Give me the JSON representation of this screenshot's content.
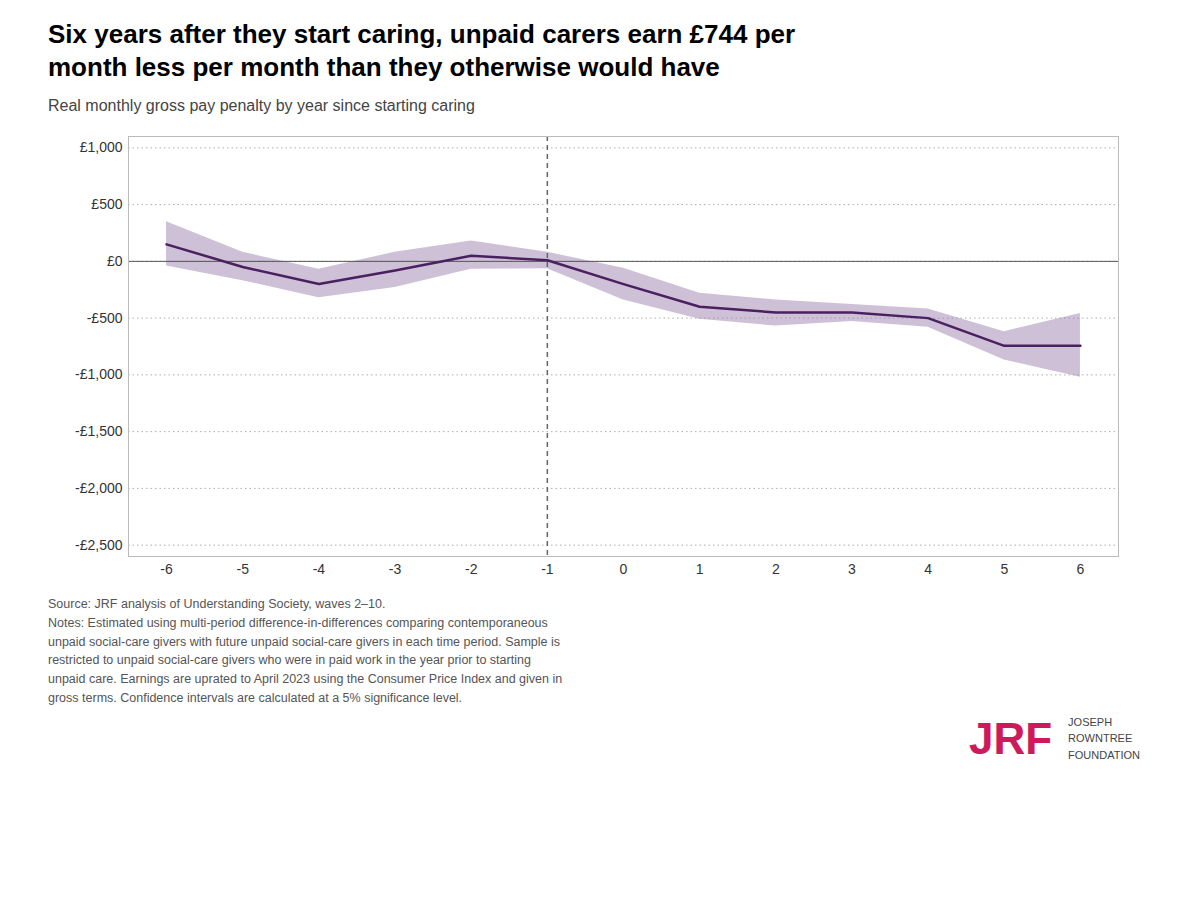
{
  "chart_data": {
    "type": "line",
    "title": "Six years after they start caring, unpaid carers earn £744 per\nmonth less per month than they otherwise would have",
    "subtitle": "Real monthly gross pay penalty by year since starting caring",
    "caption": "Source: JRF analysis of Understanding Society, waves 2–10.\nNotes: Estimated using multi-period difference-in-differences comparing contemporaneous\nunpaid social-care givers with future unpaid social-care givers in each time period. Sample is\nrestricted to unpaid social-care givers who were in paid work in the year prior to starting\nunpaid care. Earnings are uprated to April 2023 using the Consumer Price Index and given in\ngross terms. Confidence intervals are calculated at a 5% significance level.",
    "annotations": [
      "JRF",
      "JOSEPH\nROWNTREE\nFOUNDATION"
    ],
    "x": [
      -6,
      -5,
      -4,
      -3,
      -2,
      -1,
      0,
      1,
      2,
      3,
      4,
      5,
      6
    ],
    "series": [
      {
        "type": "area",
        "color": "#9b82b0",
        "lower": [
          -40,
          -170,
          -320,
          -230,
          -70,
          -65,
          -340,
          -510,
          -570,
          -530,
          -580,
          -870,
          -1020
        ],
        "upper": [
          350,
          80,
          -70,
          80,
          180,
          80,
          -60,
          -280,
          -340,
          -380,
          -420,
          -620,
          -460
        ]
      },
      {
        "type": "line",
        "color": "#4a2060",
        "values": [
          150,
          -50,
          -200,
          -80,
          50,
          10,
          -200,
          -400,
          -450,
          -450,
          -500,
          -744,
          -744
        ]
      }
    ],
    "reference_lines": [
      {
        "axis": "y",
        "value": 0,
        "line_style": "solid"
      },
      {
        "axis": "x",
        "value": -1,
        "line_style": "dashed"
      }
    ],
    "xlim": [
      -6.5,
      6.5
    ],
    "xticks": [
      -6,
      -5,
      -4,
      -3,
      -2,
      -1,
      0,
      1,
      2,
      3,
      4,
      5,
      6
    ],
    "ylim": [
      -2600,
      1100
    ],
    "yticks": [
      {
        "value": 1000,
        "label": "£1,000"
      },
      {
        "value": 500,
        "label": "£500"
      },
      {
        "value": 0,
        "label": "£0"
      },
      {
        "value": -500,
        "label": "-£500"
      },
      {
        "value": -1000,
        "label": "-£1,000"
      },
      {
        "value": -1500,
        "label": "-£1,500"
      },
      {
        "value": -2000,
        "label": "-£2,000"
      },
      {
        "value": -2500,
        "label": "-£2,500"
      }
    ],
    "grid": true
  }
}
